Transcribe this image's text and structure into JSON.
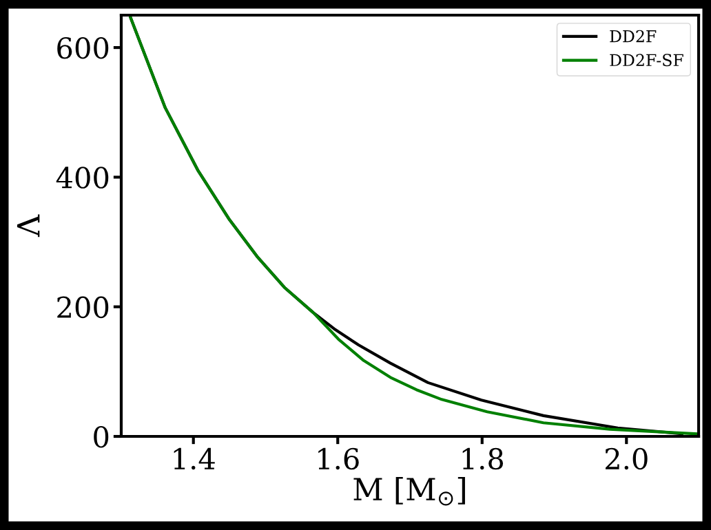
{
  "chart_data": {
    "type": "line",
    "xlabel": "M [M$_{⊙}$]",
    "ylabel": "Λ",
    "xlim": [
      1.3,
      2.1
    ],
    "xticks": [
      {
        "value": 1.4,
        "label": "1.4"
      },
      {
        "value": 1.6,
        "label": "1.6"
      },
      {
        "value": 1.8,
        "label": "1.8"
      },
      {
        "value": 2.0,
        "label": "2.0"
      }
    ],
    "ylim": [
      0,
      650
    ],
    "yticks": [
      0,
      200,
      400,
      600
    ],
    "grid": false,
    "legend": "top right",
    "marker": "none",
    "line_style": "solid",
    "series": [
      {
        "name": "DD2F",
        "color": "#000000",
        "x": [
          1.313,
          1.361,
          1.406,
          1.449,
          1.488,
          1.526,
          1.566,
          1.595,
          1.629,
          1.673,
          1.725,
          1.799,
          1.885,
          1.988,
          2.077
        ],
        "values": [
          646,
          507,
          411,
          336,
          278,
          230,
          191,
          166,
          141,
          113,
          83,
          56,
          32,
          13,
          4
        ]
      },
      {
        "name": "DD2F-SF",
        "color": "#008000",
        "x": [
          1.313,
          1.361,
          1.406,
          1.449,
          1.488,
          1.526,
          1.566,
          1.601,
          1.636,
          1.673,
          1.709,
          1.744,
          1.807,
          1.885,
          1.977,
          2.097
        ],
        "values": [
          646,
          507,
          411,
          336,
          278,
          230,
          191,
          150,
          117,
          91,
          72,
          57,
          38,
          21,
          11,
          4
        ]
      }
    ]
  }
}
